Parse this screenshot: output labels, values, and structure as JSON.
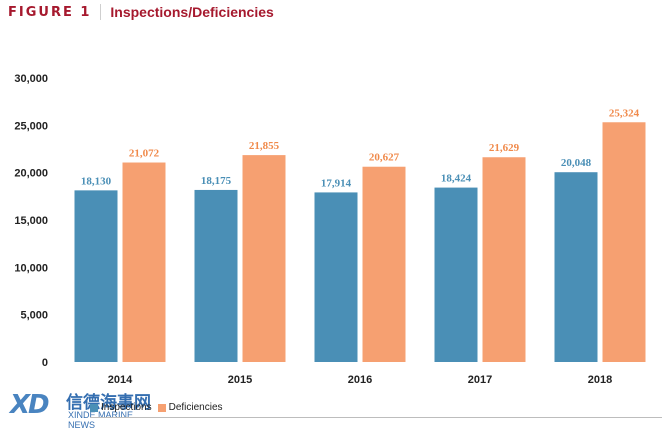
{
  "header": {
    "figure_label": "FIGURE 1",
    "title": "Inspections/Deficiencies"
  },
  "colors": {
    "accent": "#a6192e",
    "inspections": "#4a8fb6",
    "deficiencies": "#f6a071",
    "inspections_label": "#4a8fb6",
    "deficiencies_label": "#f08a4b"
  },
  "chart_data": {
    "type": "bar",
    "categories": [
      "2014",
      "2015",
      "2016",
      "2017",
      "2018"
    ],
    "series": [
      {
        "name": "Inspections",
        "values": [
          18130,
          18175,
          17914,
          18424,
          20048
        ],
        "labels": [
          "18,130",
          "18,175",
          "17,914",
          "18,424",
          "20,048"
        ]
      },
      {
        "name": "Deficiencies",
        "values": [
          21072,
          21855,
          20627,
          21629,
          25324
        ],
        "labels": [
          "21,072",
          "21,855",
          "20,627",
          "21,629",
          "25,324"
        ]
      }
    ],
    "ylim": [
      0,
      30000
    ],
    "yticks": [
      "0",
      "5,000",
      "10,000",
      "15,000",
      "20,000",
      "25,000",
      "30,000"
    ],
    "ytick_values": [
      0,
      5000,
      10000,
      15000,
      20000,
      25000,
      30000
    ],
    "grid": false,
    "legend_position": "bottom-left"
  },
  "legend": {
    "items": [
      "Inspections",
      "Deficiencies"
    ]
  },
  "watermark": {
    "logo": "XD",
    "chinese": "信德海事网",
    "english": "XINDE MARINE NEWS"
  }
}
